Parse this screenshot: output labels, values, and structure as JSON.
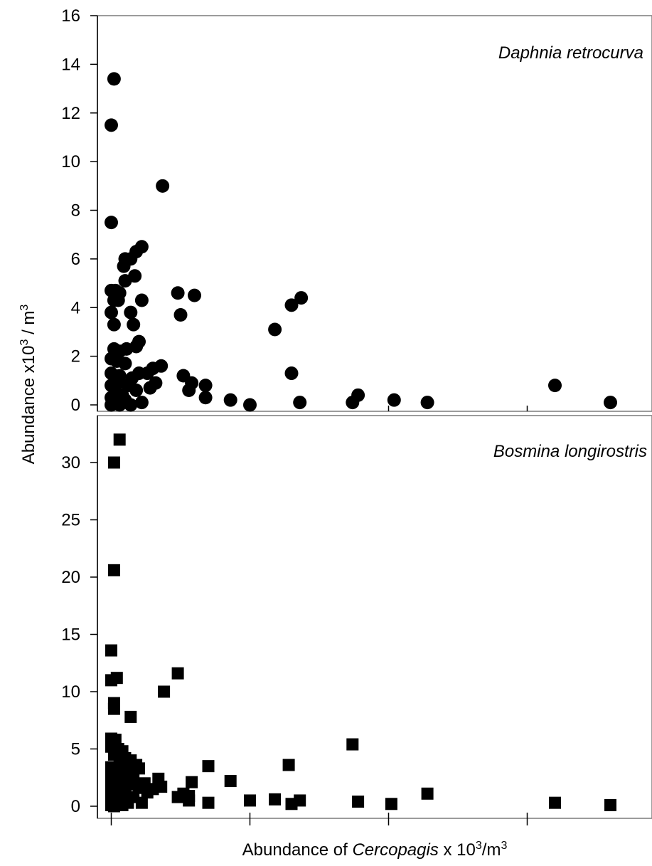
{
  "xlabel": {
    "prefix": "Abundance of ",
    "italic": "Cercopagis",
    "suffix": " x 10",
    "sup": "3",
    "tail": "/m",
    "sup2": "3"
  },
  "ylabel": {
    "prefix": "Abundance x10",
    "sup": "3",
    "tail": " / m",
    "sup2": "3"
  },
  "chart_data": [
    {
      "type": "scatter",
      "title": "Daphnia retrocurva",
      "marker": "circle",
      "color": "#000000",
      "xlim": [
        -0.1,
        3.9
      ],
      "ylim": [
        0,
        16
      ],
      "yticks": [
        0,
        2,
        4,
        6,
        8,
        10,
        12,
        14,
        16
      ],
      "grid": false,
      "points": [
        [
          0.02,
          13.4
        ],
        [
          0.0,
          11.5
        ],
        [
          0.0,
          7.5
        ],
        [
          0.37,
          9.0
        ],
        [
          0.22,
          6.5
        ],
        [
          0.18,
          6.3
        ],
        [
          0.14,
          6.0
        ],
        [
          0.1,
          6.0
        ],
        [
          0.09,
          5.7
        ],
        [
          0.17,
          5.3
        ],
        [
          0.1,
          5.1
        ],
        [
          0.0,
          4.7
        ],
        [
          0.03,
          4.7
        ],
        [
          0.06,
          4.6
        ],
        [
          0.02,
          4.3
        ],
        [
          0.05,
          4.3
        ],
        [
          0.22,
          4.3
        ],
        [
          0.48,
          4.6
        ],
        [
          0.6,
          4.5
        ],
        [
          0.0,
          3.8
        ],
        [
          0.14,
          3.8
        ],
        [
          0.5,
          3.7
        ],
        [
          0.02,
          3.3
        ],
        [
          0.16,
          3.3
        ],
        [
          0.2,
          2.6
        ],
        [
          0.18,
          2.4
        ],
        [
          0.11,
          2.3
        ],
        [
          0.02,
          2.3
        ],
        [
          0.06,
          2.2
        ],
        [
          0.0,
          1.9
        ],
        [
          0.04,
          1.8
        ],
        [
          0.1,
          1.7
        ],
        [
          0.3,
          1.5
        ],
        [
          0.36,
          1.6
        ],
        [
          0.0,
          1.3
        ],
        [
          0.06,
          1.2
        ],
        [
          0.15,
          1.1
        ],
        [
          0.2,
          1.3
        ],
        [
          0.26,
          1.3
        ],
        [
          0.52,
          1.2
        ],
        [
          0.58,
          0.9
        ],
        [
          0.68,
          0.8
        ],
        [
          0.32,
          0.9
        ],
        [
          0.28,
          0.7
        ],
        [
          0.0,
          0.8
        ],
        [
          0.04,
          0.9
        ],
        [
          0.12,
          0.8
        ],
        [
          0.18,
          0.6
        ],
        [
          0.56,
          0.6
        ],
        [
          0.68,
          0.3
        ],
        [
          0.86,
          0.2
        ],
        [
          1.0,
          0.0
        ],
        [
          1.18,
          3.1
        ],
        [
          1.3,
          4.1
        ],
        [
          1.37,
          4.4
        ],
        [
          1.3,
          1.3
        ],
        [
          1.36,
          0.1
        ],
        [
          1.74,
          0.1
        ],
        [
          1.78,
          0.4
        ],
        [
          2.04,
          0.2
        ],
        [
          2.28,
          0.1
        ],
        [
          3.2,
          0.8
        ],
        [
          3.6,
          0.1
        ],
        [
          0.0,
          0.3
        ],
        [
          0.02,
          0.1
        ],
        [
          0.06,
          0.0
        ],
        [
          0.1,
          0.2
        ],
        [
          0.14,
          0.0
        ],
        [
          0.22,
          0.1
        ],
        [
          0.08,
          0.4
        ],
        [
          0.0,
          0.0
        ],
        [
          0.04,
          0.5
        ]
      ]
    },
    {
      "type": "scatter",
      "title": "Bosmina longirostris",
      "marker": "square",
      "color": "#000000",
      "xlim": [
        -0.1,
        3.9
      ],
      "ylim": [
        0,
        33
      ],
      "yticks": [
        0,
        5,
        10,
        15,
        20,
        25,
        30
      ],
      "grid": false,
      "points": [
        [
          0.06,
          32.0
        ],
        [
          0.02,
          30.0
        ],
        [
          0.02,
          20.6
        ],
        [
          0.0,
          13.6
        ],
        [
          0.48,
          11.6
        ],
        [
          0.0,
          11.0
        ],
        [
          0.04,
          11.2
        ],
        [
          0.38,
          10.0
        ],
        [
          0.02,
          9.0
        ],
        [
          0.02,
          8.5
        ],
        [
          0.14,
          7.8
        ],
        [
          0.0,
          5.9
        ],
        [
          0.03,
          5.8
        ],
        [
          0.0,
          5.2
        ],
        [
          0.05,
          5.0
        ],
        [
          0.08,
          4.8
        ],
        [
          0.02,
          4.5
        ],
        [
          0.1,
          4.2
        ],
        [
          0.14,
          4.0
        ],
        [
          0.06,
          3.8
        ],
        [
          0.18,
          3.6
        ],
        [
          0.0,
          3.4
        ],
        [
          0.04,
          3.2
        ],
        [
          0.2,
          3.3
        ],
        [
          0.12,
          3.1
        ],
        [
          0.7,
          3.5
        ],
        [
          0.86,
          2.2
        ],
        [
          1.28,
          3.6
        ],
        [
          1.74,
          5.4
        ],
        [
          0.0,
          2.8
        ],
        [
          0.08,
          2.7
        ],
        [
          0.16,
          2.4
        ],
        [
          0.24,
          2.0
        ],
        [
          0.34,
          2.4
        ],
        [
          0.04,
          2.2
        ],
        [
          0.12,
          1.9
        ],
        [
          0.0,
          1.8
        ],
        [
          0.06,
          1.6
        ],
        [
          0.2,
          1.6
        ],
        [
          0.3,
          1.5
        ],
        [
          0.36,
          1.7
        ],
        [
          0.58,
          2.1
        ],
        [
          0.52,
          1.1
        ],
        [
          0.48,
          0.8
        ],
        [
          0.56,
          0.9
        ],
        [
          0.26,
          1.2
        ],
        [
          0.0,
          1.0
        ],
        [
          0.1,
          1.0
        ],
        [
          0.04,
          0.8
        ],
        [
          0.16,
          0.8
        ],
        [
          0.0,
          0.5
        ],
        [
          0.06,
          0.4
        ],
        [
          0.12,
          0.3
        ],
        [
          0.22,
          0.3
        ],
        [
          0.56,
          0.5
        ],
        [
          0.7,
          0.3
        ],
        [
          1.0,
          0.5
        ],
        [
          1.18,
          0.6
        ],
        [
          1.3,
          0.2
        ],
        [
          1.36,
          0.5
        ],
        [
          1.78,
          0.4
        ],
        [
          2.02,
          0.2
        ],
        [
          2.28,
          1.1
        ],
        [
          3.2,
          0.3
        ],
        [
          3.6,
          0.1
        ],
        [
          0.0,
          0.1
        ],
        [
          0.02,
          0.0
        ],
        [
          0.08,
          0.1
        ]
      ]
    }
  ]
}
